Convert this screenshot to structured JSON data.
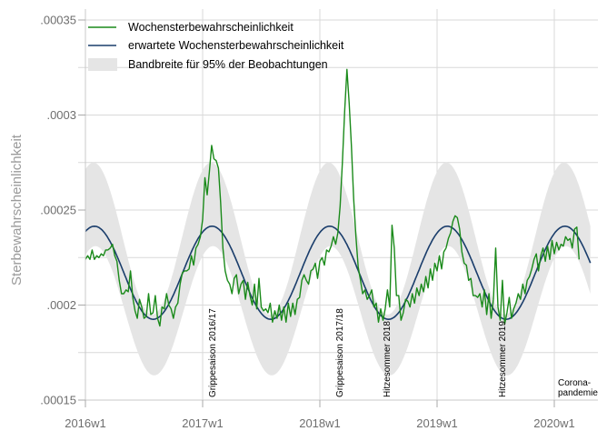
{
  "chart_data": {
    "type": "line",
    "title": "",
    "xlabel": "",
    "ylabel": "Sterbewahrscheinlichkeit",
    "ylim": [
      0.00015,
      0.00035
    ],
    "yticks": [
      {
        "value": 0.00015,
        "label": ".00015"
      },
      {
        "value": 0.0002,
        "label": ".0002"
      },
      {
        "value": 0.00025,
        "label": ".00025"
      },
      {
        "value": 0.0003,
        "label": ".0003"
      },
      {
        "value": 0.00035,
        "label": ".00035"
      }
    ],
    "xticks": [
      {
        "week_index": 0,
        "label": "2016w1"
      },
      {
        "week_index": 52,
        "label": "2017w1"
      },
      {
        "week_index": 104,
        "label": "2018w1"
      },
      {
        "week_index": 156,
        "label": "2019w1"
      },
      {
        "week_index": 208,
        "label": "2020w1"
      }
    ],
    "grid": true,
    "legend_position": "top-left inside",
    "legend": [
      {
        "label": "Wochensterbewahrscheinlichkeit",
        "type": "line",
        "color": "#1a8a1a"
      },
      {
        "label": "erwartete Wochensterbewahrscheinlichkeit",
        "type": "line",
        "color": "#1a3d6b"
      },
      {
        "label": "Bandbreite für 95% der Beobachtungen",
        "type": "area",
        "color": "#e5e5e5"
      }
    ],
    "annotations": [
      {
        "label": "Grippesaison 2016/17",
        "week_index": 53,
        "orientation": "vertical"
      },
      {
        "label": "Grippesaison 2017/18",
        "week_index": 110,
        "orientation": "vertical"
      },
      {
        "label": "Hitzesommer 2018",
        "week_index": 134,
        "orientation": "vertical"
      },
      {
        "label": "Hitzesommer 2019",
        "week_index": 185,
        "orientation": "vertical"
      },
      {
        "label": "Corona-\npandemie",
        "week_index": 210,
        "orientation": "horizontal"
      }
    ],
    "x_start": "2016w1",
    "n_weeks": 225,
    "expected": {
      "mean": 0.000217,
      "amplitude": 2.45e-05,
      "peak_week_of_year": 5
    },
    "band": {
      "upper_mean": 0.000235,
      "upper_amplitude": 4e-05,
      "lower_mean": 0.000197,
      "lower_amplitude": 3.4e-05
    },
    "series": [
      {
        "name": "Wochensterbewahrscheinlichkeit",
        "color": "#1a8a1a",
        "values": [
          0.000224,
          0.000226,
          0.000224,
          0.000229,
          0.000224,
          0.000226,
          0.000225,
          0.000227,
          0.000226,
          0.000229,
          0.000229,
          0.00023,
          0.000232,
          0.000226,
          0.000223,
          0.000213,
          0.000206,
          0.000206,
          0.000208,
          0.000207,
          0.000218,
          0.000204,
          0.000197,
          0.000193,
          0.000203,
          0.000199,
          0.000193,
          0.000194,
          0.000206,
          0.000195,
          0.000196,
          0.000205,
          0.000193,
          0.000189,
          0.000199,
          0.000198,
          0.000206,
          0.0002,
          0.000198,
          0.000193,
          0.000199,
          0.000201,
          0.000211,
          0.000217,
          0.000218,
          0.000218,
          0.000219,
          0.000226,
          0.000221,
          0.00023,
          0.000232,
          0.000236,
          0.000245,
          0.000267,
          0.000258,
          0.00027,
          0.000284,
          0.000277,
          0.000276,
          0.000272,
          0.000254,
          0.00023,
          0.000218,
          0.000213,
          0.000211,
          0.000206,
          0.000214,
          0.000216,
          0.000206,
          0.000211,
          0.000213,
          0.000203,
          0.000212,
          0.000205,
          0.0002,
          0.000211,
          0.000198,
          0.000214,
          0.000199,
          0.000197,
          0.000198,
          0.000196,
          0.000201,
          0.000191,
          0.000197,
          0.000193,
          0.0002,
          0.000192,
          0.000199,
          0.000191,
          0.000201,
          0.000194,
          0.000201,
          0.000195,
          0.000203,
          0.000204,
          0.000213,
          0.000216,
          0.000213,
          0.000211,
          0.000218,
          0.000219,
          0.000222,
          0.000214,
          0.000223,
          0.000225,
          0.000221,
          0.000229,
          0.000228,
          0.000231,
          0.000236,
          0.000232,
          0.000238,
          0.000252,
          0.000275,
          0.000302,
          0.000324,
          0.000306,
          0.000284,
          0.000256,
          0.000236,
          0.00022,
          0.000213,
          0.000206,
          0.000208,
          0.000203,
          0.000205,
          0.000208,
          0.000199,
          0.000201,
          0.000191,
          0.000198,
          0.000192,
          0.000198,
          0.000208,
          0.000199,
          0.000242,
          0.00023,
          0.000205,
          0.000205,
          0.000192,
          0.000196,
          0.000203,
          0.000202,
          0.000199,
          0.000206,
          0.000201,
          0.000209,
          0.000205,
          0.000211,
          0.000207,
          0.000215,
          0.000209,
          0.000219,
          0.000213,
          0.000222,
          0.000218,
          0.000226,
          0.000219,
          0.000228,
          0.00023,
          0.000235,
          0.000238,
          0.000244,
          0.000247,
          0.000246,
          0.00024,
          0.000228,
          0.000222,
          0.000221,
          0.000213,
          0.000214,
          0.000205,
          0.000205,
          0.000204,
          0.000206,
          0.000199,
          0.000208,
          0.000195,
          0.000206,
          0.000193,
          0.000203,
          0.00023,
          0.000199,
          0.000192,
          0.000213,
          0.00019,
          0.000196,
          0.000204,
          0.000193,
          0.000198,
          0.000201,
          0.000206,
          0.000203,
          0.000211,
          0.000206,
          0.000213,
          0.000215,
          0.000219,
          0.000224,
          0.000227,
          0.000218,
          0.000226,
          0.00023,
          0.000223,
          0.000231,
          0.000224,
          0.000234,
          0.000227,
          0.000233,
          0.000229,
          0.000232,
          0.000231,
          0.000236,
          0.000234,
          0.000235,
          0.00023,
          0.00024,
          0.000241,
          0.000224
        ]
      }
    ]
  }
}
